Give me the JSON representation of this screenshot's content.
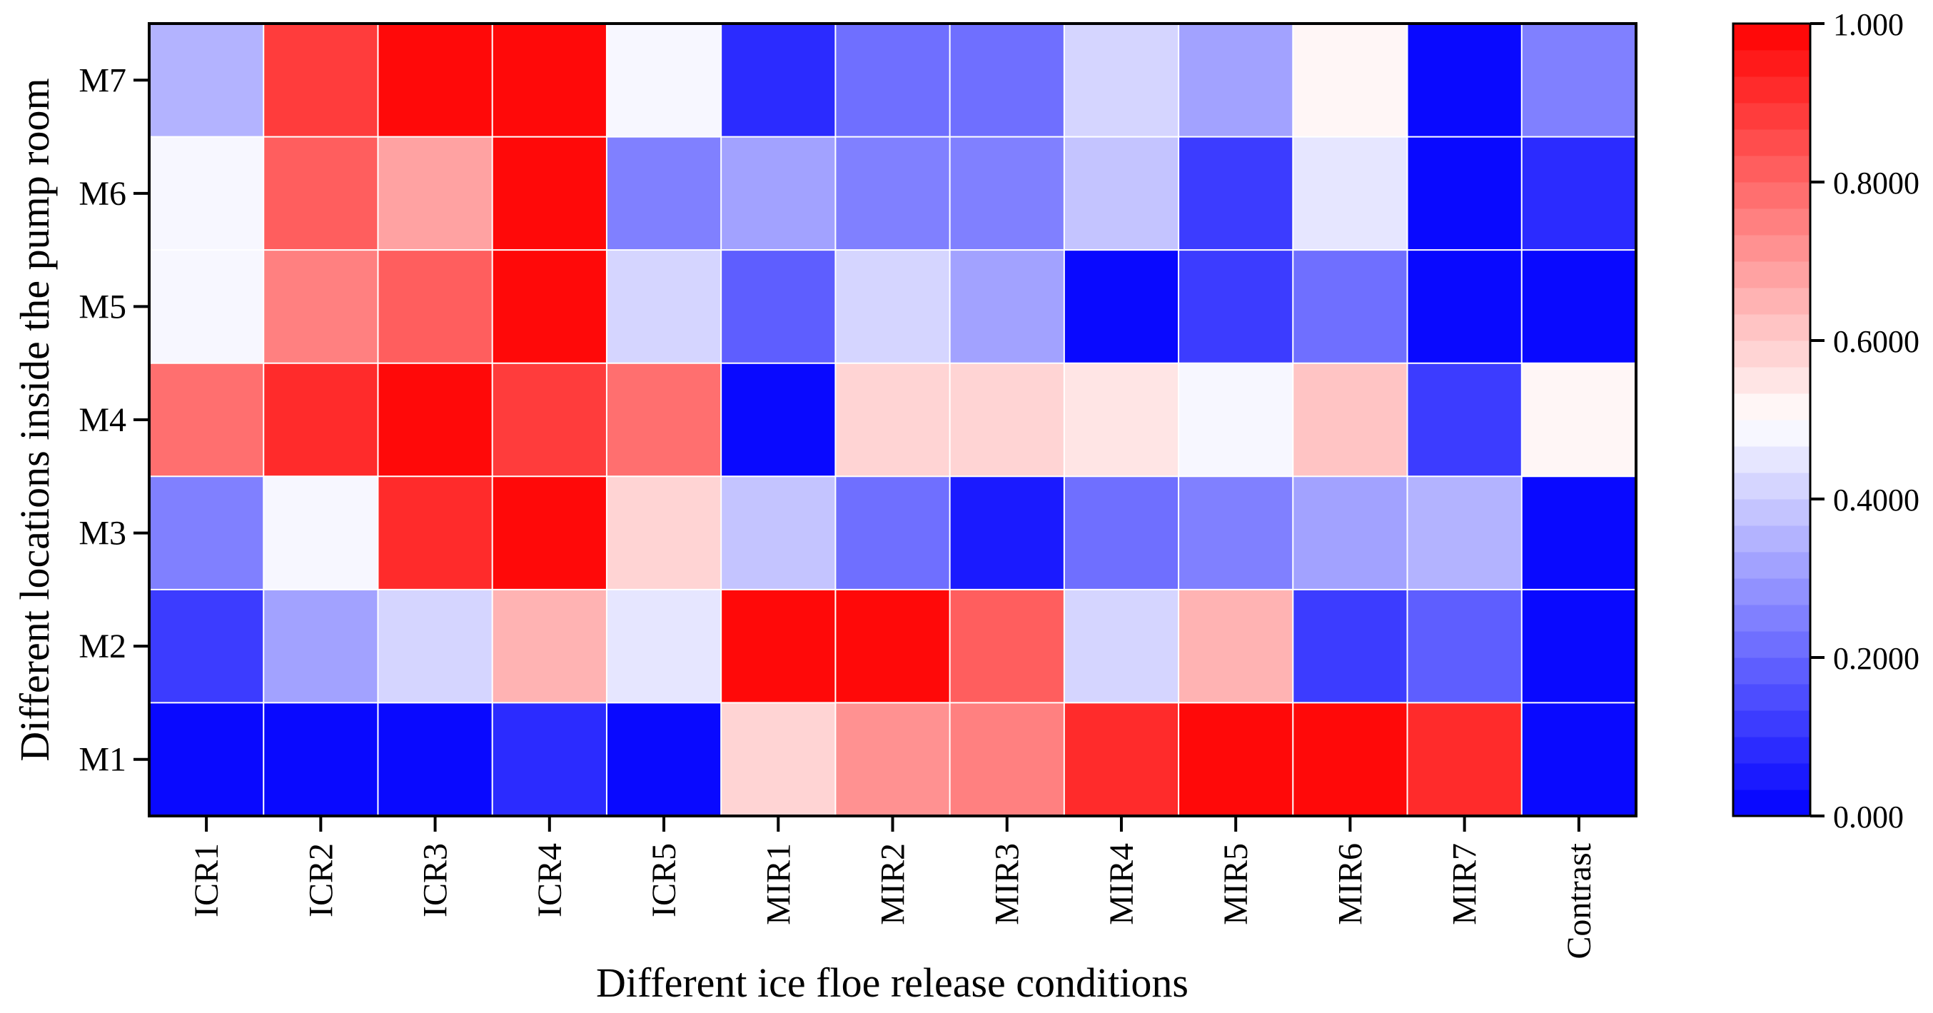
{
  "chart_data": {
    "type": "heatmap",
    "xlabel": "Different ice floe release conditions",
    "ylabel": "Different locations inside the pump room",
    "x_categories": [
      "ICR1",
      "ICR2",
      "ICR3",
      "ICR4",
      "ICR5",
      "MIR1",
      "MIR2",
      "MIR3",
      "MIR4",
      "MIR5",
      "MIR6",
      "MIR7",
      "Contrast"
    ],
    "y_categories": [
      "M7",
      "M6",
      "M5",
      "M4",
      "M3",
      "M2",
      "M1"
    ],
    "values": [
      [
        0.35,
        0.87,
        1.0,
        1.0,
        0.49,
        0.09,
        0.2,
        0.22,
        0.42,
        0.32,
        0.53,
        0.0,
        0.25
      ],
      [
        0.48,
        0.81,
        0.69,
        1.0,
        0.26,
        0.3,
        0.26,
        0.24,
        0.37,
        0.13,
        0.45,
        0.0,
        0.07
      ],
      [
        0.48,
        0.76,
        0.83,
        1.0,
        0.42,
        0.18,
        0.42,
        0.3,
        0.0,
        0.13,
        0.2,
        0.0,
        0.0
      ],
      [
        0.79,
        0.93,
        1.0,
        0.88,
        0.78,
        0.0,
        0.58,
        0.59,
        0.56,
        0.48,
        0.63,
        0.13,
        0.52
      ],
      [
        0.24,
        0.49,
        0.9,
        1.0,
        0.58,
        0.37,
        0.2,
        0.05,
        0.2,
        0.24,
        0.3,
        0.36,
        0.0
      ],
      [
        0.13,
        0.3,
        0.42,
        0.65,
        0.45,
        1.0,
        1.0,
        0.82,
        0.41,
        0.64,
        0.13,
        0.17,
        0.0
      ],
      [
        0.0,
        0.0,
        0.02,
        0.08,
        0.01,
        0.58,
        0.72,
        0.75,
        0.9,
        1.0,
        0.97,
        0.9,
        0.02
      ]
    ],
    "colorbar": {
      "min": 0,
      "max": 1,
      "ticks": [
        0,
        0.2,
        0.4,
        0.6,
        0.8,
        1.0
      ],
      "tick_labels": [
        "0.000",
        "0.2000",
        "0.4000",
        "0.6000",
        "0.8000",
        "1.000"
      ],
      "levels": 30,
      "low_color": "#0000ff",
      "mid_color": "#ffffff",
      "high_color": "#ff0000"
    }
  }
}
